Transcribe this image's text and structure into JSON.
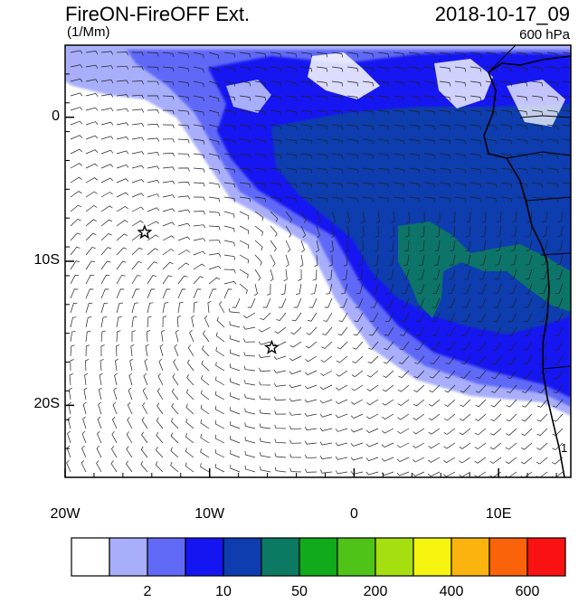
{
  "header": {
    "title": "FireON-FireOFF Ext.",
    "units": "(1/Mm)",
    "datetime": "2018-10-17_09",
    "level": "600 hPa"
  },
  "map": {
    "lon_range": [
      -20,
      15
    ],
    "lat_range": [
      -25,
      5
    ],
    "lon_ticks": [
      {
        "value": -20,
        "label": "20W"
      },
      {
        "value": -10,
        "label": "10W"
      },
      {
        "value": 0,
        "label": "0"
      },
      {
        "value": 10,
        "label": "10E"
      }
    ],
    "lat_ticks": [
      {
        "value": 0,
        "label": "0"
      },
      {
        "value": -10,
        "label": "10S"
      },
      {
        "value": -20,
        "label": "20S"
      }
    ],
    "markers": [
      {
        "name": "star",
        "lon": -14.5,
        "lat": -8.0
      },
      {
        "name": "star",
        "lon": -5.7,
        "lat": -16.0
      }
    ],
    "contour_label": "1"
  },
  "colorbar": {
    "colors": [
      "#ffffff",
      "#a8aefa",
      "#6169f7",
      "#1515f2",
      "#0d3dae",
      "#0c7a62",
      "#10aa1a",
      "#4fc318",
      "#a5df10",
      "#f5f510",
      "#fbb30e",
      "#fb630a",
      "#fa1212"
    ],
    "labels": [
      {
        "after_box": 1,
        "text": "2"
      },
      {
        "after_box": 3,
        "text": "10"
      },
      {
        "after_box": 5,
        "text": "50"
      },
      {
        "after_box": 7,
        "text": "200"
      },
      {
        "after_box": 9,
        "text": "400"
      },
      {
        "after_box": 11,
        "text": "600"
      }
    ]
  }
}
